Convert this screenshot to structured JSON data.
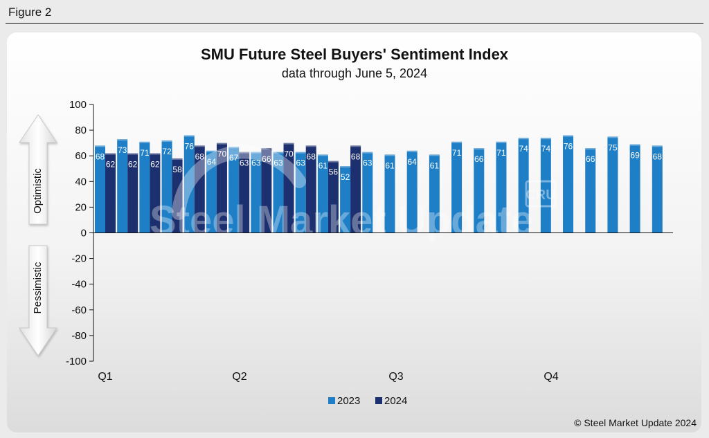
{
  "figure_label": "Figure 2",
  "copyright": "© Steel Market Update 2024",
  "watermark_text": "Steel Market Update",
  "watermark_logo": "CRU",
  "chart_data": {
    "type": "bar",
    "title": "SMU Future Steel Buyers' Sentiment Index",
    "subtitle": "data through June 5, 2024",
    "ylim": [
      -100,
      100
    ],
    "yticks": [
      100,
      80,
      60,
      40,
      20,
      0,
      -20,
      -40,
      -60,
      -80,
      -100
    ],
    "quarter_labels": [
      "Q1",
      "Q2",
      "Q3",
      "Q4"
    ],
    "side_labels": {
      "upper": "Optimistic",
      "lower": "Pessimistic"
    },
    "legend_position": "bottom",
    "series": [
      {
        "name": "2023",
        "color": "#1f7fc6",
        "values": [
          68,
          73,
          71,
          72,
          76,
          64,
          67,
          63,
          63,
          63,
          61,
          52,
          63,
          61,
          64,
          61,
          71,
          66,
          71,
          74,
          74,
          76,
          66,
          75,
          69,
          68
        ]
      },
      {
        "name": "2024",
        "color": "#1c2f6e",
        "values": [
          62,
          62,
          62,
          58,
          68,
          70,
          63,
          66,
          70,
          68,
          56,
          68
        ]
      }
    ]
  }
}
